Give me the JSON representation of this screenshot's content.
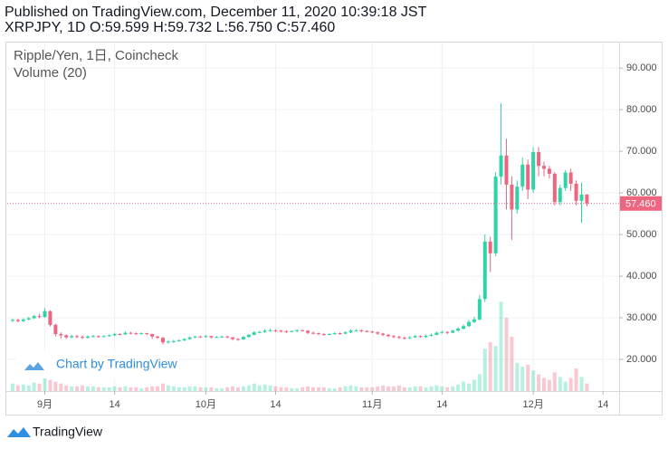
{
  "header": {
    "published": "Published on TradingView.com, December 11, 2020 10:39:18 JST",
    "symbol_line": "XRPJPY, 1D O:59.599 H:59.732 L:56.750 C:57.460"
  },
  "footer": {
    "brand": "TradingView"
  },
  "chart_data": {
    "type": "candlestick",
    "legend": [
      "Ripple/Yen, 1日, Coincheck",
      "Volume (20)"
    ],
    "watermark": "Chart by TradingView",
    "up_color": "#2fd4a6",
    "down_color": "#ee6580",
    "grid": true,
    "xlim": [
      "2020-08-25",
      "2020-12-17"
    ],
    "xticks": [
      {
        "value": "2020-09-01",
        "label": "9月"
      },
      {
        "value": "2020-09-14",
        "label": "14"
      },
      {
        "value": "2020-10-01",
        "label": "10月"
      },
      {
        "value": "2020-10-14",
        "label": "14"
      },
      {
        "value": "2020-11-01",
        "label": "11月"
      },
      {
        "value": "2020-11-14",
        "label": "14"
      },
      {
        "value": "2020-12-01",
        "label": "12月"
      },
      {
        "value": "2020-12-14",
        "label": "14"
      }
    ],
    "ylim": [
      12.4,
      95.9
    ],
    "yticks": [
      {
        "value": 20,
        "label": "20.000"
      },
      {
        "value": 30,
        "label": "30.000"
      },
      {
        "value": 40,
        "label": "40.000"
      },
      {
        "value": 50,
        "label": "50.000"
      },
      {
        "value": 60,
        "label": "60.000"
      },
      {
        "value": 70,
        "label": "70.000"
      },
      {
        "value": 80,
        "label": "80.000"
      },
      {
        "value": 90,
        "label": "90.000"
      }
    ],
    "last_price_label": {
      "value": 57.46,
      "label": "57.460"
    },
    "volume_ylim": [
      0,
      370
    ],
    "x": [
      "2020-08-26",
      "2020-08-27",
      "2020-08-28",
      "2020-08-29",
      "2020-08-30",
      "2020-08-31",
      "2020-09-01",
      "2020-09-02",
      "2020-09-03",
      "2020-09-04",
      "2020-09-05",
      "2020-09-06",
      "2020-09-07",
      "2020-09-08",
      "2020-09-09",
      "2020-09-10",
      "2020-09-11",
      "2020-09-12",
      "2020-09-13",
      "2020-09-14",
      "2020-09-15",
      "2020-09-16",
      "2020-09-17",
      "2020-09-18",
      "2020-09-19",
      "2020-09-20",
      "2020-09-21",
      "2020-09-22",
      "2020-09-23",
      "2020-09-24",
      "2020-09-25",
      "2020-09-26",
      "2020-09-27",
      "2020-09-28",
      "2020-09-29",
      "2020-09-30",
      "2020-10-01",
      "2020-10-02",
      "2020-10-03",
      "2020-10-04",
      "2020-10-05",
      "2020-10-06",
      "2020-10-07",
      "2020-10-08",
      "2020-10-09",
      "2020-10-10",
      "2020-10-11",
      "2020-10-12",
      "2020-10-13",
      "2020-10-14",
      "2020-10-15",
      "2020-10-16",
      "2020-10-17",
      "2020-10-18",
      "2020-10-19",
      "2020-10-20",
      "2020-10-21",
      "2020-10-22",
      "2020-10-23",
      "2020-10-24",
      "2020-10-25",
      "2020-10-26",
      "2020-10-27",
      "2020-10-28",
      "2020-10-29",
      "2020-10-30",
      "2020-10-31",
      "2020-11-01",
      "2020-11-02",
      "2020-11-03",
      "2020-11-04",
      "2020-11-05",
      "2020-11-06",
      "2020-11-07",
      "2020-11-08",
      "2020-11-09",
      "2020-11-10",
      "2020-11-11",
      "2020-11-12",
      "2020-11-13",
      "2020-11-14",
      "2020-11-15",
      "2020-11-16",
      "2020-11-17",
      "2020-11-18",
      "2020-11-19",
      "2020-11-20",
      "2020-11-21",
      "2020-11-22",
      "2020-11-23",
      "2020-11-24",
      "2020-11-25",
      "2020-11-26",
      "2020-11-27",
      "2020-11-28",
      "2020-11-29",
      "2020-11-30",
      "2020-12-01",
      "2020-12-02",
      "2020-12-03",
      "2020-12-04",
      "2020-12-05",
      "2020-12-06",
      "2020-12-07",
      "2020-12-08",
      "2020-12-09",
      "2020-12-10",
      "2020-12-11"
    ],
    "open": [
      29.3,
      29.5,
      29.2,
      29.6,
      29.9,
      30.4,
      30.2,
      31.6,
      28.3,
      26.1,
      25.8,
      25.3,
      25.6,
      25.4,
      25.2,
      25.5,
      25.6,
      25.4,
      25.6,
      25.8,
      26.1,
      26.0,
      26.4,
      26.3,
      26.1,
      26.3,
      26.1,
      25.5,
      25.2,
      24.1,
      24.3,
      24.4,
      24.6,
      24.9,
      25.3,
      25.5,
      25.4,
      25.6,
      25.3,
      25.4,
      25.5,
      25.3,
      24.9,
      24.8,
      25.4,
      25.9,
      26.5,
      26.6,
      26.9,
      27.0,
      26.9,
      26.8,
      26.6,
      26.8,
      27.0,
      26.9,
      26.4,
      26.3,
      26.1,
      25.9,
      26.1,
      26.3,
      26.2,
      26.5,
      26.9,
      27.0,
      26.8,
      26.7,
      26.5,
      26.2,
      25.9,
      25.6,
      25.4,
      25.2,
      25.1,
      25.3,
      25.6,
      25.4,
      25.7,
      25.9,
      26.4,
      26.6,
      26.4,
      26.9,
      27.4,
      28.0,
      29.0,
      29.6,
      34.5,
      48.3,
      45.5,
      63.9,
      69.0,
      62.0,
      56.0,
      61.5,
      66.8,
      60.8,
      69.8,
      66.5,
      65.8,
      64.6,
      57.8,
      61.2,
      64.9,
      62.2,
      58.1,
      59.599
    ],
    "high": [
      29.8,
      29.8,
      29.9,
      30.2,
      30.7,
      31.0,
      32.3,
      31.8,
      28.6,
      26.5,
      26.0,
      25.9,
      25.9,
      25.8,
      25.8,
      25.9,
      25.8,
      25.8,
      26.0,
      26.4,
      26.3,
      26.7,
      26.6,
      26.5,
      26.5,
      26.4,
      26.2,
      25.7,
      25.4,
      24.6,
      24.7,
      24.8,
      25.1,
      25.5,
      25.7,
      25.7,
      25.9,
      25.7,
      25.6,
      25.7,
      25.7,
      25.4,
      25.1,
      25.6,
      26.1,
      26.8,
      26.9,
      27.3,
      27.4,
      27.2,
      27.1,
      27.0,
      27.0,
      27.2,
      27.2,
      27.0,
      26.7,
      26.5,
      26.3,
      26.3,
      26.5,
      26.5,
      26.8,
      27.2,
      27.3,
      27.2,
      27.0,
      26.9,
      26.7,
      26.4,
      26.1,
      25.9,
      25.7,
      25.5,
      25.6,
      25.9,
      25.8,
      26.0,
      26.2,
      26.7,
      26.9,
      26.8,
      27.2,
      27.8,
      28.4,
      29.5,
      30.2,
      35.4,
      50.0,
      49.5,
      65.0,
      81.5,
      73.0,
      64.0,
      63.0,
      68.5,
      68.0,
      71.0,
      71.0,
      67.5,
      66.5,
      65.0,
      62.0,
      65.5,
      65.8,
      63.0,
      62.5,
      59.732
    ],
    "low": [
      29.0,
      28.9,
      29.0,
      29.4,
      29.7,
      29.9,
      30.0,
      27.9,
      25.5,
      25.0,
      24.9,
      25.1,
      25.1,
      24.9,
      25.0,
      25.3,
      25.2,
      25.3,
      25.4,
      25.6,
      25.8,
      25.9,
      26.0,
      25.9,
      26.0,
      25.8,
      25.0,
      24.9,
      23.6,
      23.8,
      24.0,
      24.2,
      24.4,
      24.7,
      25.1,
      25.2,
      25.2,
      25.0,
      25.1,
      25.2,
      25.1,
      24.6,
      24.5,
      24.7,
      25.2,
      25.8,
      26.3,
      26.4,
      26.7,
      26.6,
      26.5,
      26.3,
      26.5,
      26.6,
      26.7,
      26.1,
      26.0,
      25.8,
      25.7,
      25.8,
      25.9,
      25.9,
      26.0,
      26.3,
      26.7,
      26.5,
      26.5,
      26.3,
      25.9,
      25.6,
      25.3,
      25.1,
      24.9,
      24.8,
      24.9,
      25.1,
      25.2,
      25.2,
      25.5,
      25.8,
      26.2,
      26.1,
      26.3,
      26.7,
      27.2,
      27.8,
      28.7,
      29.3,
      33.8,
      41.0,
      44.8,
      62.0,
      56.0,
      48.7,
      55.0,
      60.5,
      58.5,
      60.0,
      64.0,
      64.0,
      63.5,
      57.0,
      57.0,
      60.5,
      60.5,
      57.0,
      52.8,
      56.75
    ],
    "close": [
      29.5,
      29.2,
      29.6,
      29.9,
      30.4,
      30.2,
      31.6,
      28.3,
      26.1,
      25.8,
      25.3,
      25.6,
      25.4,
      25.2,
      25.5,
      25.6,
      25.4,
      25.6,
      25.8,
      26.1,
      26.0,
      26.4,
      26.3,
      26.1,
      26.3,
      26.1,
      25.5,
      25.2,
      24.1,
      24.3,
      24.4,
      24.6,
      24.9,
      25.3,
      25.5,
      25.4,
      25.6,
      25.3,
      25.4,
      25.5,
      25.3,
      24.9,
      24.8,
      25.4,
      25.9,
      26.5,
      26.6,
      26.9,
      27.0,
      26.9,
      26.8,
      26.6,
      26.8,
      27.0,
      26.9,
      26.4,
      26.3,
      26.1,
      25.9,
      26.1,
      26.3,
      26.2,
      26.5,
      26.9,
      27.0,
      26.8,
      26.7,
      26.5,
      26.2,
      25.9,
      25.6,
      25.4,
      25.2,
      25.1,
      25.3,
      25.6,
      25.4,
      25.7,
      25.9,
      26.4,
      26.6,
      26.4,
      26.9,
      27.4,
      28.0,
      29.0,
      29.6,
      34.5,
      48.3,
      45.5,
      63.9,
      69.0,
      62.0,
      56.0,
      61.5,
      66.8,
      60.8,
      69.8,
      66.5,
      65.8,
      64.6,
      57.8,
      61.2,
      64.9,
      62.2,
      58.1,
      59.6,
      57.46
    ],
    "volume": [
      8,
      6,
      7,
      6,
      9,
      8,
      14,
      12,
      10,
      8,
      6,
      5,
      5,
      6,
      5,
      5,
      4,
      4,
      4,
      5,
      4,
      5,
      4,
      4,
      3,
      4,
      5,
      5,
      8,
      6,
      5,
      4,
      4,
      5,
      5,
      4,
      4,
      4,
      3,
      3,
      4,
      5,
      4,
      5,
      6,
      8,
      6,
      7,
      6,
      5,
      4,
      4,
      3,
      3,
      4,
      5,
      4,
      4,
      4,
      3,
      3,
      4,
      5,
      6,
      5,
      4,
      4,
      4,
      5,
      6,
      5,
      5,
      6,
      4,
      4,
      5,
      5,
      4,
      5,
      6,
      5,
      4,
      5,
      7,
      10,
      8,
      12,
      18,
      45,
      52,
      48,
      95,
      78,
      58,
      30,
      26,
      28,
      22,
      18,
      14,
      12,
      20,
      15,
      10,
      14,
      24,
      15,
      8
    ]
  }
}
